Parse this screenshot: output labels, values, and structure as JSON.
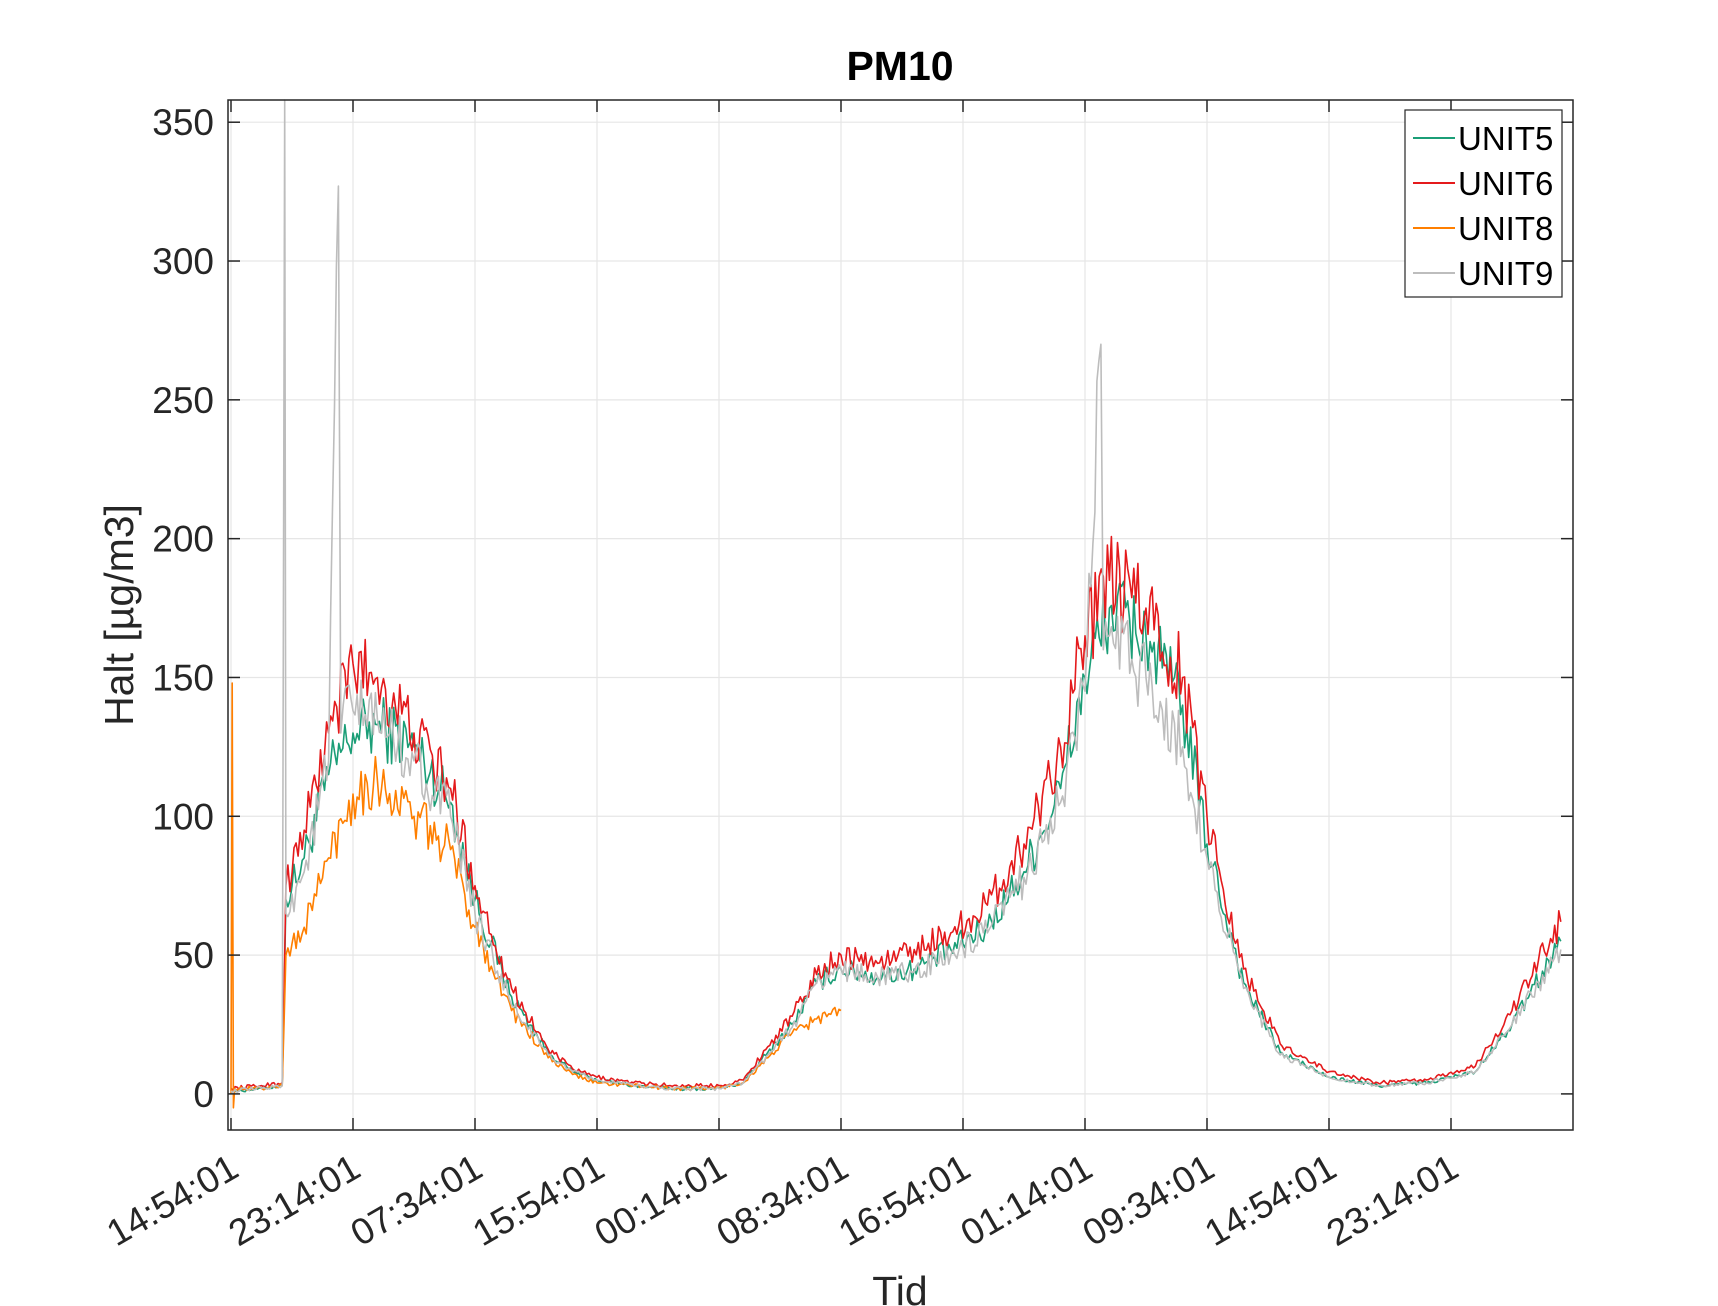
{
  "chart_data": {
    "type": "line",
    "title": "PM10",
    "xlabel": "Tid",
    "ylabel": "Halt [µg/m3]",
    "ylim": [
      -13,
      358
    ],
    "yticks": [
      0,
      50,
      100,
      150,
      200,
      250,
      300,
      350
    ],
    "xtick_labels": [
      "14:54:01",
      "23:14:01",
      "07:34:01",
      "15:54:01",
      "00:14:01",
      "08:34:01",
      "16:54:01",
      "01:14:01",
      "09:34:01",
      "14:54:01",
      "23:14:01"
    ],
    "grid": true,
    "legend_position": "top-right",
    "x_note": "x values are tick indices (0 = first tick label, 10 = last tick label)",
    "series": [
      {
        "name": "UNIT5",
        "color": "#1b9e77",
        "x": [
          0,
          0.25,
          0.42,
          0.45,
          0.6,
          0.8,
          1.0,
          1.2,
          1.5,
          1.8,
          2.0,
          2.3,
          2.6,
          2.8,
          3.0,
          3.3,
          3.6,
          3.9,
          4.0,
          4.2,
          4.4,
          4.6,
          4.8,
          5.0,
          5.3,
          5.6,
          5.9,
          6.2,
          6.5,
          6.8,
          7.0,
          7.2,
          7.5,
          7.8,
          8.0,
          8.3,
          8.6,
          9.0,
          9.4,
          9.8,
          10.2,
          10.5,
          10.9
        ],
        "y": [
          1,
          2,
          3,
          70,
          85,
          115,
          130,
          133,
          125,
          105,
          70,
          35,
          15,
          8,
          5,
          3,
          2,
          2,
          2,
          4,
          15,
          25,
          40,
          45,
          42,
          45,
          52,
          60,
          80,
          110,
          150,
          175,
          165,
          140,
          90,
          40,
          15,
          6,
          3,
          4,
          8,
          25,
          55
        ]
      },
      {
        "name": "UNIT6",
        "color": "#e41a1c",
        "x": [
          0,
          0.25,
          0.42,
          0.45,
          0.6,
          0.8,
          1.0,
          1.2,
          1.5,
          1.8,
          2.0,
          2.3,
          2.6,
          2.8,
          3.0,
          3.3,
          3.6,
          3.9,
          4.0,
          4.2,
          4.4,
          4.6,
          4.8,
          5.0,
          5.3,
          5.6,
          5.9,
          6.2,
          6.5,
          6.8,
          7.0,
          7.2,
          7.5,
          7.8,
          8.0,
          8.3,
          8.6,
          9.0,
          9.4,
          9.8,
          10.2,
          10.5,
          10.9
        ],
        "y": [
          2,
          3,
          4,
          75,
          95,
          130,
          155,
          150,
          130,
          110,
          75,
          38,
          16,
          9,
          6,
          4,
          3,
          3,
          3,
          5,
          17,
          28,
          43,
          50,
          47,
          52,
          58,
          68,
          90,
          125,
          165,
          185,
          175,
          150,
          100,
          45,
          18,
          8,
          4,
          5,
          10,
          30,
          62
        ]
      },
      {
        "name": "UNIT8",
        "color": "#ff7f00",
        "x": [
          0,
          0.01,
          0.02,
          0.03,
          0.25,
          0.42,
          0.45,
          0.6,
          0.8,
          1.0,
          1.2,
          1.5,
          1.8,
          2.0,
          2.3,
          2.6,
          2.8,
          3.0,
          3.3,
          3.6,
          3.9,
          4.0,
          4.2,
          4.4,
          4.6,
          4.8,
          5.0
        ],
        "y": [
          0,
          148,
          -5,
          2,
          2,
          3,
          50,
          60,
          85,
          108,
          113,
          100,
          88,
          60,
          30,
          13,
          7,
          4,
          3,
          2,
          2,
          2,
          4,
          13,
          22,
          27,
          30
        ]
      },
      {
        "name": "UNIT9",
        "color": "#bdbdbd",
        "x": [
          0,
          0.25,
          0.42,
          0.44,
          0.45,
          0.6,
          0.8,
          0.88,
          0.9,
          0.92,
          1.0,
          1.2,
          1.5,
          1.8,
          2.0,
          2.3,
          2.6,
          2.8,
          3.0,
          3.3,
          3.6,
          3.9,
          4.0,
          4.2,
          4.4,
          4.6,
          4.8,
          5.0,
          5.3,
          5.6,
          5.9,
          6.2,
          6.5,
          6.8,
          7.0,
          7.13,
          7.15,
          7.17,
          7.2,
          7.5,
          7.8,
          8.0,
          8.3,
          8.6,
          9.0,
          9.4,
          9.8,
          10.2,
          10.5,
          10.9
        ],
        "y": [
          1,
          2,
          3,
          358,
          65,
          80,
          120,
          327,
          130,
          140,
          138,
          135,
          120,
          100,
          65,
          32,
          14,
          8,
          5,
          3,
          2,
          2,
          2,
          4,
          14,
          24,
          40,
          45,
          42,
          44,
          50,
          58,
          78,
          105,
          145,
          270,
          160,
          170,
          165,
          150,
          125,
          85,
          38,
          14,
          6,
          3,
          4,
          8,
          25,
          52
        ]
      }
    ]
  }
}
